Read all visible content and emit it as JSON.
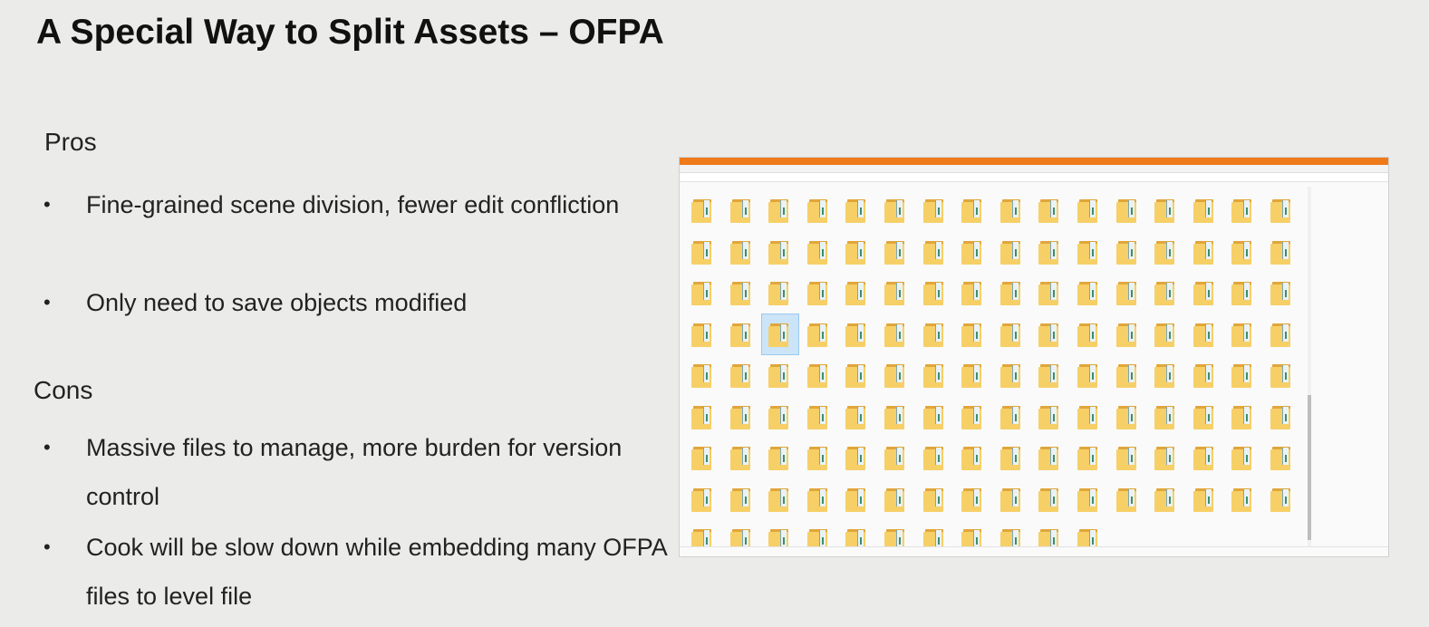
{
  "slide": {
    "title": "A Special Way to Split Assets – OFPA",
    "pros_heading": "Pros",
    "pros": [
      "Fine-grained scene division, fewer edit confliction",
      "Only need to save objects modified"
    ],
    "cons_heading": "Cons",
    "cons": [
      "Massive files to manage, more burden for version control",
      "Cook will be slow down while embedding many OFPA files to level file"
    ],
    "bullet_glyph": "•"
  },
  "explorer": {
    "accent_color": "#ef7a1a",
    "folder_color": "#f6cf67",
    "selected_folder_index": 50
  }
}
